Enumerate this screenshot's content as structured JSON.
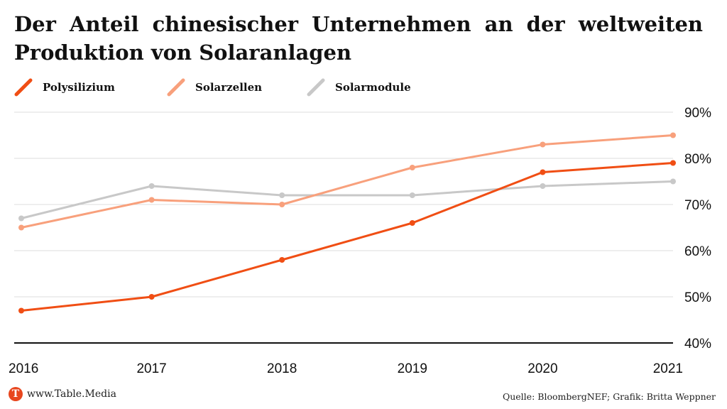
{
  "title": "Der Anteil chinesischer Unternehmen an der weltweiten Produktion von Solaranlagen",
  "footer": {
    "logo_mark": "T",
    "logo_text": "www.Table.Media",
    "source": "Quelle: BloombergNEF; Grafik: Britta Weppner"
  },
  "colors": {
    "polysilizium": "#f04e14",
    "solarzellen": "#f8a07c",
    "solarmodule": "#c8c8c8",
    "grid": "#dddddd",
    "baseline": "#111111",
    "logo": "#e8461e"
  },
  "chart_data": {
    "type": "line",
    "title": "Der Anteil chinesischer Unternehmen an der weltweiten Produktion von Solaranlagen",
    "xlabel": "",
    "ylabel": "",
    "x": [
      "2016",
      "2017",
      "2018",
      "2019",
      "2020",
      "2021"
    ],
    "ylim": [
      40,
      90
    ],
    "yticks": [
      40,
      50,
      60,
      70,
      80,
      90
    ],
    "ytick_labels": [
      "40%",
      "50%",
      "60%",
      "70%",
      "80%",
      "90%"
    ],
    "y_axis_position": "right",
    "grid": true,
    "legend_position": "top-left",
    "series": [
      {
        "name": "Polysilizium",
        "key": "polysilizium",
        "values": [
          47,
          50,
          58,
          66,
          77,
          79
        ]
      },
      {
        "name": "Solarzellen",
        "key": "solarzellen",
        "values": [
          65,
          71,
          70,
          78,
          83,
          85
        ]
      },
      {
        "name": "Solarmodule",
        "key": "solarmodule",
        "values": [
          67,
          74,
          72,
          72,
          74,
          75
        ]
      }
    ]
  }
}
